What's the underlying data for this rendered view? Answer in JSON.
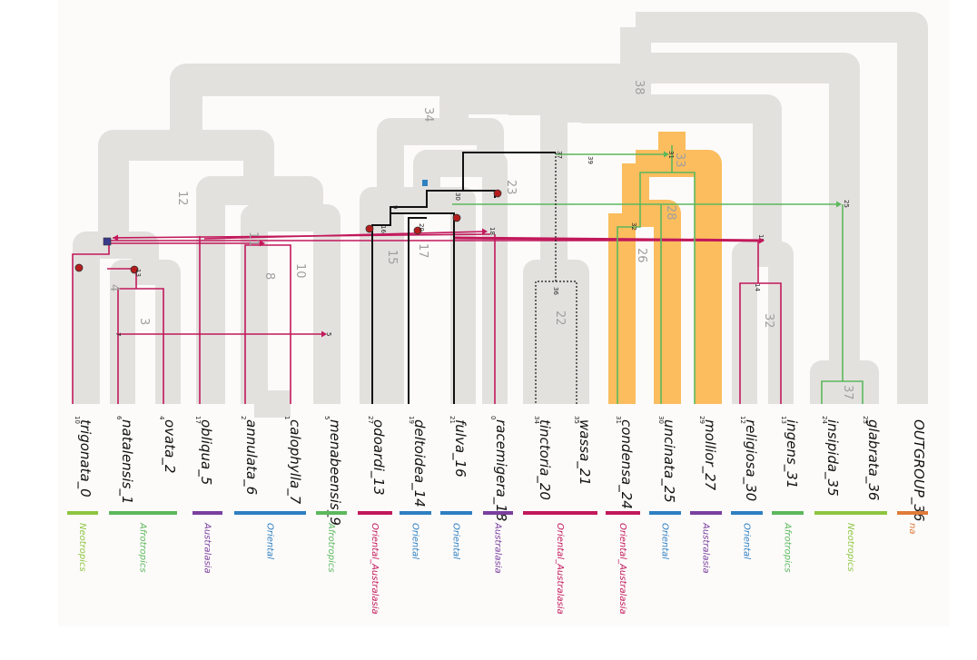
{
  "tree": {
    "tips": [
      {
        "name": "trigonata_0",
        "num": "10"
      },
      {
        "name": "natalensis_1",
        "num": "6"
      },
      {
        "name": "ovata_2",
        "num": "4"
      },
      {
        "name": "obliqua_5",
        "num": "17"
      },
      {
        "name": "annulata_6",
        "num": "2"
      },
      {
        "name": "calophylla_7",
        "num": "1"
      },
      {
        "name": "menabeensis_9",
        "num": "5"
      },
      {
        "name": "odoardi_13",
        "num": "27"
      },
      {
        "name": "deltoidea_14",
        "num": "19"
      },
      {
        "name": "fulva_16",
        "num": "21"
      },
      {
        "name": "racemigera_18",
        "num": "0"
      },
      {
        "name": "tinctoria_20",
        "num": "34"
      },
      {
        "name": "wassa_21",
        "num": "35"
      },
      {
        "name": "condensa_24",
        "num": "31"
      },
      {
        "name": "uncinata_25",
        "num": "30"
      },
      {
        "name": "mollior_27",
        "num": "29"
      },
      {
        "name": "religiosa_30",
        "num": "12"
      },
      {
        "name": "ingens_31",
        "num": "13"
      },
      {
        "name": "insipida_35",
        "num": "24"
      },
      {
        "name": "glabrata_36",
        "num": "23"
      },
      {
        "name": "OUTGROUP_36",
        "num": ""
      }
    ],
    "clade_labels": [
      "38",
      "34",
      "12",
      "11",
      "8",
      "10",
      "4",
      "3",
      "23",
      "17",
      "15",
      "33",
      "28",
      "26",
      "32",
      "22",
      "37"
    ],
    "migration_labels": [
      "37",
      "39",
      "36",
      "30",
      "25",
      "32",
      "31",
      "15",
      "14",
      "7",
      "5",
      "9",
      "18",
      "13",
      "16",
      "20"
    ]
  },
  "regions": [
    {
      "label": "Neotropics",
      "color": "#8dc63f"
    },
    {
      "label": "Afrotropics",
      "color": "#5cb85c"
    },
    {
      "label": "Australasia",
      "color": "#7b3f9e"
    },
    {
      "label": "Oriental",
      "color": "#2f7fc1"
    },
    {
      "label": "Afrotropics",
      "color": "#5cb85c"
    },
    {
      "label": "Oriental_Australasia",
      "color": "#c2185b"
    },
    {
      "label": "Oriental",
      "color": "#2f7fc1"
    },
    {
      "label": "Oriental",
      "color": "#2f7fc1"
    },
    {
      "label": "Australasia",
      "color": "#7b3f9e"
    },
    {
      "label": "Oriental_Australasia",
      "color": "#c2185b"
    },
    {
      "label": "Oriental_Australasia",
      "color": "#c2185b"
    },
    {
      "label": "Oriental",
      "color": "#2f7fc1"
    },
    {
      "label": "Australasia",
      "color": "#7b3f9e"
    },
    {
      "label": "Oriental",
      "color": "#2f7fc1"
    },
    {
      "label": "Afrotropics",
      "color": "#5cb85c"
    },
    {
      "label": "Neotropics",
      "color": "#8dc63f"
    },
    {
      "label": "na",
      "color": "#e07b39"
    }
  ],
  "colors": {
    "species_tree": "#e3e1de",
    "highlight_clade": "#fbbd5e",
    "migration_red": "#c2185b",
    "migration_green": "#5cb85c",
    "gene_black": "#111111",
    "node_marker": "#b71c1c"
  }
}
